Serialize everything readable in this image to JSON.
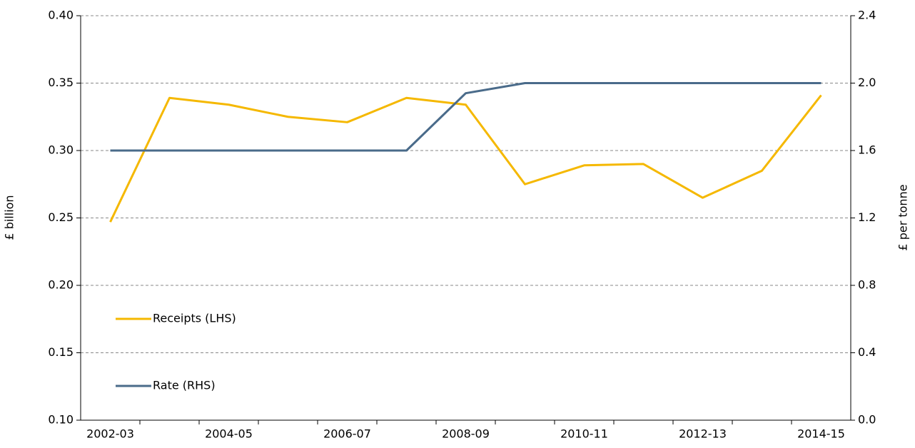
{
  "chart_data": {
    "type": "line",
    "ylabel": "£ billion",
    "y2label": "£ per tonne",
    "categories": [
      "2002-03",
      null,
      "2004-05",
      null,
      "2006-07",
      null,
      "2008-09",
      null,
      "2010-11",
      null,
      "2012-13",
      null,
      "2014-15"
    ],
    "series": [
      {
        "name": "Receipts (LHS)",
        "color": "#f5b800",
        "values": [
          0.247,
          0.339,
          0.334,
          0.325,
          0.321,
          0.339,
          0.334,
          0.275,
          0.289,
          0.29,
          0.265,
          0.285,
          0.341
        ]
      },
      {
        "name": "Rate (RHS)",
        "color": "#4a6b8a",
        "axis": "y2",
        "values": [
          1.6,
          1.6,
          1.6,
          1.6,
          1.6,
          1.6,
          1.94,
          2.0,
          2.0,
          2.0,
          2.0,
          2.0,
          2.0
        ]
      }
    ],
    "ylim": [
      0.1,
      0.4
    ],
    "yticks": [
      {
        "value": 0.1,
        "label": "0.10"
      },
      0.15,
      {
        "value": 0.2,
        "label": "0.20"
      },
      0.25,
      {
        "value": 0.3,
        "label": "0.30"
      },
      0.35,
      {
        "value": 0.4,
        "label": "0.40"
      }
    ],
    "y2lim": [
      0,
      2.4
    ],
    "y2ticks": [
      {
        "value": 0,
        "label": "0.0"
      },
      0.4,
      0.8,
      1.2,
      1.6,
      {
        "value": 2,
        "label": "2.0"
      },
      2.4
    ],
    "grid": true
  }
}
